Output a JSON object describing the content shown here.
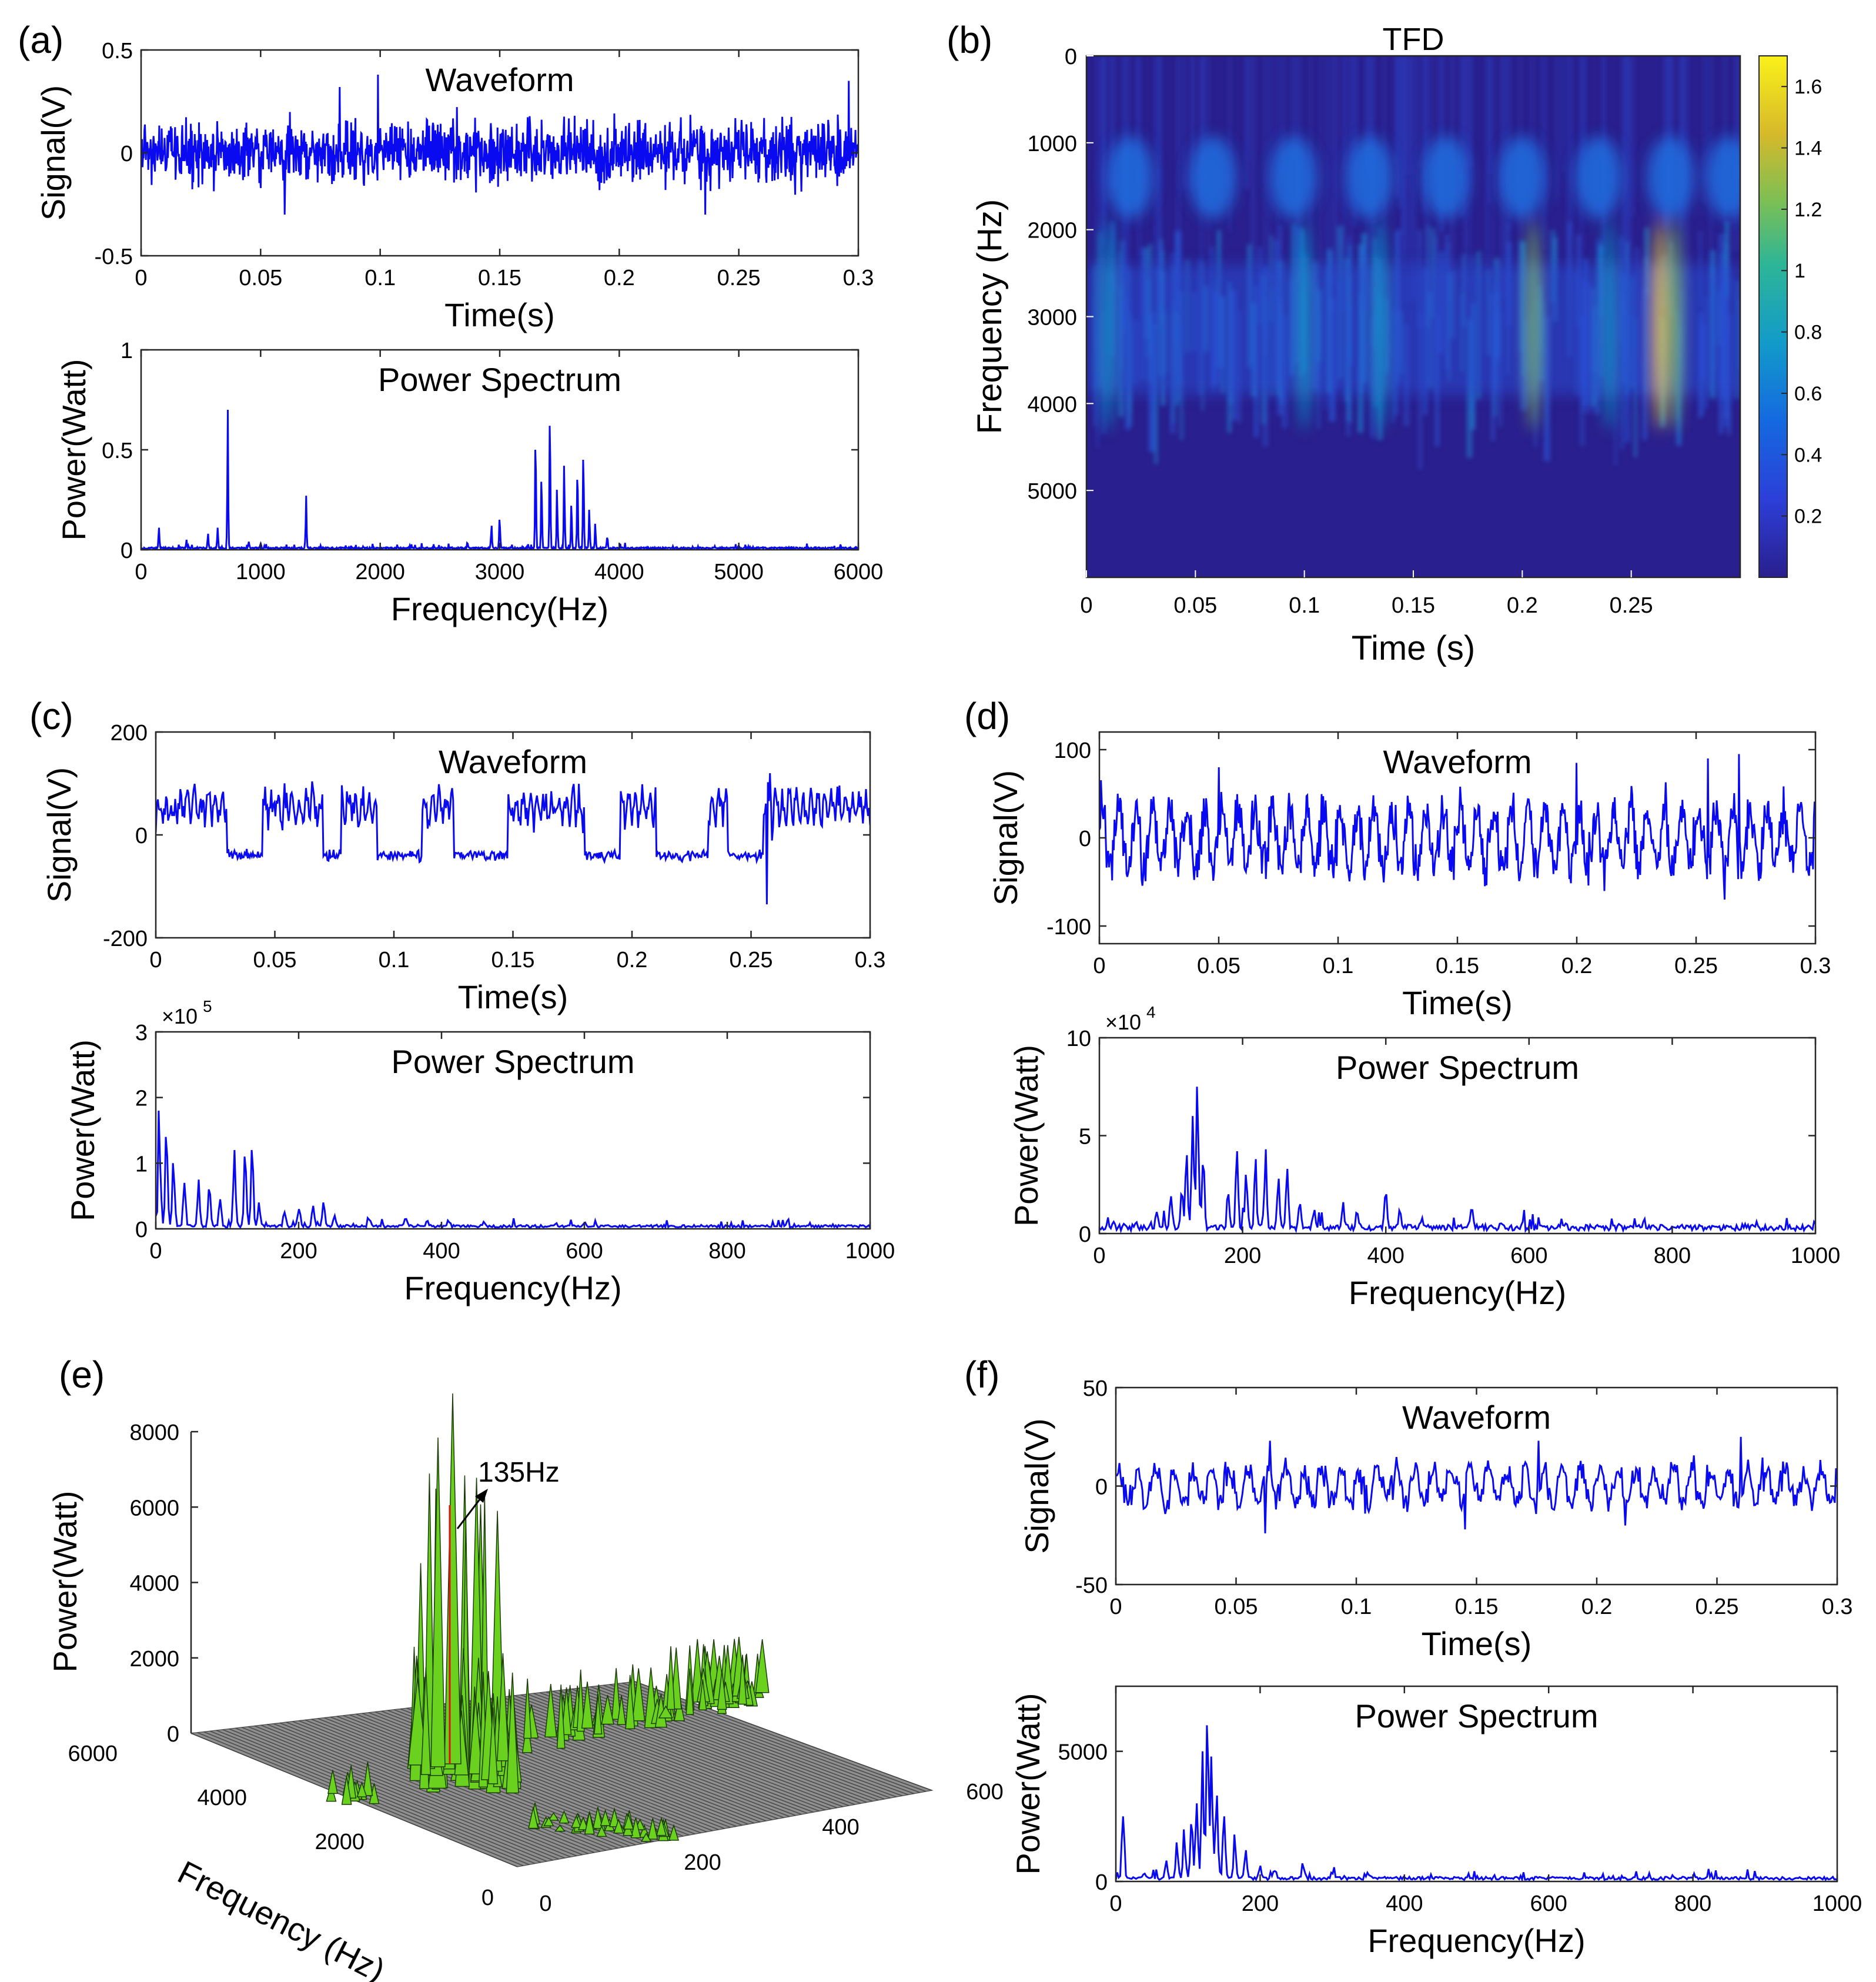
{
  "colors": {
    "line": "#0a0af0",
    "axis": "#262626",
    "tfd_low": "#2a1f8e",
    "tfd_high": "#f9e71e"
  },
  "chart_data": [
    {
      "id": "a1",
      "panel": "(a)",
      "type": "line",
      "title": "Waveform",
      "xlabel": "Time(s)",
      "ylabel": "Signal(V)",
      "xlim": [
        0,
        0.3
      ],
      "ylim": [
        -0.5,
        0.5
      ],
      "xticks": [
        0,
        0.05,
        0.1,
        0.15,
        0.2,
        0.25,
        0.3
      ],
      "xticklabels": [
        "0",
        "0.05",
        "0.1",
        "0.15",
        "0.2",
        "0.25",
        "0.3"
      ],
      "yticks": [
        -0.5,
        0,
        0.5
      ],
      "yticklabels": [
        "-0.5",
        "0",
        "0.5"
      ],
      "signal": {
        "kind": "noise",
        "amp": 0.14,
        "n": 1500,
        "seed": 11,
        "spikes": [
          [
            0.099,
            0.38
          ],
          [
            0.236,
            -0.3
          ],
          [
            0.296,
            0.35
          ],
          [
            0.083,
            0.32
          ],
          [
            0.06,
            -0.3
          ]
        ]
      }
    },
    {
      "id": "a2",
      "type": "line",
      "title": "Power Spectrum",
      "xlabel": "Frequency(Hz)",
      "ylabel": "Power(Watt)",
      "xlim": [
        0,
        6000
      ],
      "ylim": [
        0,
        1
      ],
      "xticks": [
        0,
        1000,
        2000,
        3000,
        4000,
        5000,
        6000
      ],
      "xticklabels": [
        "0",
        "1000",
        "2000",
        "3000",
        "4000",
        "5000",
        "6000"
      ],
      "yticks": [
        0,
        0.5,
        1
      ],
      "yticklabels": [
        "0",
        "0.5",
        "1"
      ],
      "signal": {
        "kind": "spectrum",
        "n": 1200,
        "seed": 21,
        "base": 0.004,
        "peaks": [
          [
            150,
            0.11
          ],
          [
            380,
            0.05
          ],
          [
            560,
            0.08
          ],
          [
            640,
            0.11
          ],
          [
            725,
            0.7
          ],
          [
            900,
            0.04
          ],
          [
            1000,
            0.03
          ],
          [
            1380,
            0.27
          ],
          [
            2730,
            0.03
          ],
          [
            2930,
            0.12
          ],
          [
            3000,
            0.15
          ],
          [
            3300,
            0.5
          ],
          [
            3350,
            0.34
          ],
          [
            3420,
            0.62
          ],
          [
            3480,
            0.3
          ],
          [
            3540,
            0.42
          ],
          [
            3600,
            0.22
          ],
          [
            3650,
            0.35
          ],
          [
            3700,
            0.45
          ],
          [
            3750,
            0.2
          ],
          [
            3800,
            0.13
          ],
          [
            3900,
            0.06
          ],
          [
            5000,
            0.02
          ]
        ]
      }
    },
    {
      "id": "b",
      "panel": "(b)",
      "type": "heatmap",
      "title": "TFD",
      "xlabel": "Time (s)",
      "ylabel": "Frequency (Hz)",
      "xlim": [
        0,
        0.3
      ],
      "ylim": [
        0,
        6000
      ],
      "xticks": [
        0,
        0.05,
        0.1,
        0.15,
        0.2,
        0.25
      ],
      "xticklabels": [
        "0",
        "0.05",
        "0.1",
        "0.15",
        "0.2",
        "0.25"
      ],
      "yticks": [
        0,
        1000,
        2000,
        3000,
        4000,
        5000
      ],
      "yticklabels": [
        "0",
        "1000",
        "2000",
        "3000",
        "4000",
        "5000"
      ],
      "colorbar": {
        "ticks": [
          0.2,
          0.4,
          0.6,
          0.8,
          1,
          1.2,
          1.4,
          1.6
        ],
        "ticklabels": [
          "0.2",
          "0.4",
          "0.6",
          "0.8",
          "1",
          "1.2",
          "1.4",
          "1.6"
        ],
        "range": [
          0,
          1.7
        ]
      },
      "blobs": {
        "freq": 1400,
        "times": [
          0.02,
          0.058,
          0.095,
          0.13,
          0.165,
          0.2,
          0.235,
          0.268,
          0.295
        ]
      },
      "bursts": [
        [
          0.205,
          1.1
        ],
        [
          0.263,
          1.6
        ],
        [
          0.27,
          1.2
        ],
        [
          0.01,
          0.65
        ],
        [
          0.1,
          0.5
        ],
        [
          0.135,
          0.45
        ],
        [
          0.24,
          0.55
        ]
      ]
    },
    {
      "id": "c1",
      "panel": "(c)",
      "type": "line",
      "title": "Waveform",
      "xlabel": "Time(s)",
      "ylabel": "Signal(V)",
      "xlim": [
        0,
        0.3
      ],
      "ylim": [
        -200,
        200
      ],
      "xticks": [
        0,
        0.05,
        0.1,
        0.15,
        0.2,
        0.25,
        0.3
      ],
      "xticklabels": [
        "0",
        "0.05",
        "0.1",
        "0.15",
        "0.2",
        "0.25",
        "0.3"
      ],
      "yticks": [
        -200,
        0,
        200
      ],
      "yticklabels": [
        "-200",
        "0",
        "200"
      ],
      "signal": {
        "kind": "bursty",
        "n": 700,
        "seed": 31,
        "base": -40,
        "amp": 45,
        "bursts": [
          [
            0.0,
            0.03
          ],
          [
            0.045,
            0.07
          ],
          [
            0.078,
            0.093
          ],
          [
            0.112,
            0.125
          ],
          [
            0.148,
            0.18
          ],
          [
            0.195,
            0.21
          ],
          [
            0.232,
            0.24
          ],
          [
            0.255,
            0.3
          ]
        ],
        "spikes": [
          [
            0.2565,
            -135
          ],
          [
            0.258,
            120
          ]
        ]
      }
    },
    {
      "id": "c2",
      "type": "line",
      "title": "Power Spectrum",
      "xlabel": "Frequency(Hz)",
      "ylabel": "Power(Watt)",
      "multiplier": "×10",
      "multiplier_exp": "5",
      "xlim": [
        0,
        1000
      ],
      "ylim": [
        0,
        3
      ],
      "xticks": [
        0,
        200,
        400,
        600,
        800,
        1000
      ],
      "xticklabels": [
        "0",
        "200",
        "400",
        "600",
        "800",
        "1000"
      ],
      "yticks": [
        0,
        1,
        2,
        3
      ],
      "yticklabels": [
        "0",
        "1",
        "2",
        "3"
      ],
      "signal": {
        "kind": "spectrum",
        "n": 500,
        "seed": 41,
        "base": 0.02,
        "peaks": [
          [
            5,
            1.8
          ],
          [
            15,
            1.4
          ],
          [
            25,
            1.0
          ],
          [
            40,
            0.7
          ],
          [
            60,
            0.75
          ],
          [
            75,
            0.6
          ],
          [
            90,
            0.45
          ],
          [
            110,
            1.2
          ],
          [
            125,
            1.1
          ],
          [
            135,
            1.2
          ],
          [
            145,
            0.4
          ],
          [
            180,
            0.25
          ],
          [
            200,
            0.3
          ],
          [
            220,
            0.35
          ],
          [
            235,
            0.4
          ],
          [
            250,
            0.2
          ],
          [
            300,
            0.12
          ],
          [
            350,
            0.15
          ],
          [
            380,
            0.12
          ],
          [
            410,
            0.1
          ],
          [
            460,
            0.08
          ],
          [
            560,
            0.07
          ],
          [
            600,
            0.08
          ],
          [
            700,
            0.05
          ],
          [
            800,
            0.04
          ],
          [
            950,
            0.03
          ]
        ]
      }
    },
    {
      "id": "d1",
      "panel": "(d)",
      "type": "line",
      "title": "Waveform",
      "xlabel": "Time(s)",
      "ylabel": "Signal(V)",
      "xlim": [
        0,
        0.3
      ],
      "ylim": [
        -120,
        120
      ],
      "xticks": [
        0,
        0.05,
        0.1,
        0.15,
        0.2,
        0.25,
        0.3
      ],
      "xticklabels": [
        "0",
        "0.05",
        "0.1",
        "0.15",
        "0.2",
        "0.25",
        "0.3"
      ],
      "yticks": [
        -100,
        0,
        100
      ],
      "yticklabels": [
        "-100",
        "0",
        "100"
      ],
      "signal": {
        "kind": "osc",
        "n": 900,
        "seed": 51,
        "amp": 38,
        "freq": 140,
        "spikes": [
          [
            0.262,
            -70
          ],
          [
            0.255,
            90
          ],
          [
            0.268,
            95
          ],
          [
            0.2,
            85
          ],
          [
            0.05,
            80
          ]
        ]
      }
    },
    {
      "id": "d2",
      "type": "line",
      "title": "Power Spectrum",
      "xlabel": "Frequency(Hz)",
      "ylabel": "Power(Watt)",
      "multiplier": "×10",
      "multiplier_exp": "4",
      "xlim": [
        0,
        1000
      ],
      "ylim": [
        0,
        10
      ],
      "xticks": [
        0,
        200,
        400,
        600,
        800,
        1000
      ],
      "xticklabels": [
        "0",
        "200",
        "400",
        "600",
        "800",
        "1000"
      ],
      "yticks": [
        0,
        5,
        10
      ],
      "yticklabels": [
        "0",
        "5",
        "10"
      ],
      "signal": {
        "kind": "spectrum",
        "n": 500,
        "seed": 61,
        "base": 0.15,
        "peaks": [
          [
            20,
            0.6
          ],
          [
            50,
            0.5
          ],
          [
            80,
            1.1
          ],
          [
            100,
            1.9
          ],
          [
            115,
            2.0
          ],
          [
            122,
            4.0
          ],
          [
            130,
            6.0
          ],
          [
            137,
            7.5
          ],
          [
            145,
            3.5
          ],
          [
            180,
            2.0
          ],
          [
            192,
            4.2
          ],
          [
            205,
            3.0
          ],
          [
            218,
            3.8
          ],
          [
            232,
            4.3
          ],
          [
            250,
            2.8
          ],
          [
            262,
            3.3
          ],
          [
            280,
            1.5
          ],
          [
            300,
            1.2
          ],
          [
            340,
            1.6
          ],
          [
            360,
            1.0
          ],
          [
            400,
            2.0
          ],
          [
            420,
            1.0
          ],
          [
            450,
            0.8
          ],
          [
            520,
            1.2
          ],
          [
            560,
            0.5
          ],
          [
            650,
            0.4
          ],
          [
            760,
            0.6
          ],
          [
            900,
            0.3
          ],
          [
            1000,
            0.5
          ]
        ]
      }
    },
    {
      "id": "e",
      "panel": "(e)",
      "type": "surface3d",
      "zlabel": "Power(Watt)",
      "xlabel": "Frequency (Hz)",
      "zticks": [
        0,
        2000,
        4000,
        6000,
        8000
      ],
      "zticklabels": [
        "0",
        "2000",
        "4000",
        "6000",
        "8000"
      ],
      "xticklabels": [
        "0",
        "2000",
        "4000",
        "6000"
      ],
      "yticklabels": [
        "0",
        "200",
        "400",
        "600"
      ],
      "annotation": "135Hz"
    },
    {
      "id": "f1",
      "panel": "(f)",
      "type": "line",
      "title": "Waveform",
      "xlabel": "Time(s)",
      "ylabel": "Signal(V)",
      "xlim": [
        0,
        0.3
      ],
      "ylim": [
        -50,
        50
      ],
      "xticks": [
        0,
        0.05,
        0.1,
        0.15,
        0.2,
        0.25,
        0.3
      ],
      "xticklabels": [
        "0",
        "0.05",
        "0.1",
        "0.15",
        "0.2",
        "0.25",
        "0.3"
      ],
      "yticks": [
        -50,
        0,
        50
      ],
      "yticklabels": [
        "-50",
        "0",
        "50"
      ],
      "signal": {
        "kind": "osc",
        "n": 600,
        "seed": 71,
        "amp": 10,
        "freq": 130,
        "spikes": [
          [
            0.062,
            -24
          ],
          [
            0.064,
            23
          ],
          [
            0.176,
            23
          ],
          [
            0.26,
            25
          ],
          [
            0.145,
            -22
          ],
          [
            0.212,
            -20
          ]
        ]
      }
    },
    {
      "id": "f2",
      "type": "line",
      "title": "Power Spectrum",
      "xlabel": "Frequency(Hz)",
      "ylabel": "Power(Watt)",
      "xlim": [
        0,
        1000
      ],
      "ylim": [
        0,
        7500
      ],
      "xticks": [
        0,
        200,
        400,
        600,
        800,
        1000
      ],
      "xticklabels": [
        "0",
        "200",
        "400",
        "600",
        "800",
        "1000"
      ],
      "yticks": [
        0,
        5000
      ],
      "yticklabels": [
        "0",
        "5000"
      ],
      "signal": {
        "kind": "spectrum",
        "n": 500,
        "seed": 81,
        "base": 60,
        "peaks": [
          [
            10,
            2500
          ],
          [
            40,
            300
          ],
          [
            70,
            800
          ],
          [
            85,
            1500
          ],
          [
            95,
            2000
          ],
          [
            105,
            2200
          ],
          [
            112,
            3000
          ],
          [
            120,
            5000
          ],
          [
            127,
            6000
          ],
          [
            133,
            4800
          ],
          [
            140,
            3300
          ],
          [
            150,
            2500
          ],
          [
            165,
            1800
          ],
          [
            180,
            1200
          ],
          [
            200,
            600
          ],
          [
            220,
            400
          ],
          [
            260,
            500
          ],
          [
            300,
            300
          ],
          [
            350,
            250
          ],
          [
            400,
            150
          ],
          [
            500,
            100
          ],
          [
            700,
            60
          ]
        ]
      }
    }
  ]
}
